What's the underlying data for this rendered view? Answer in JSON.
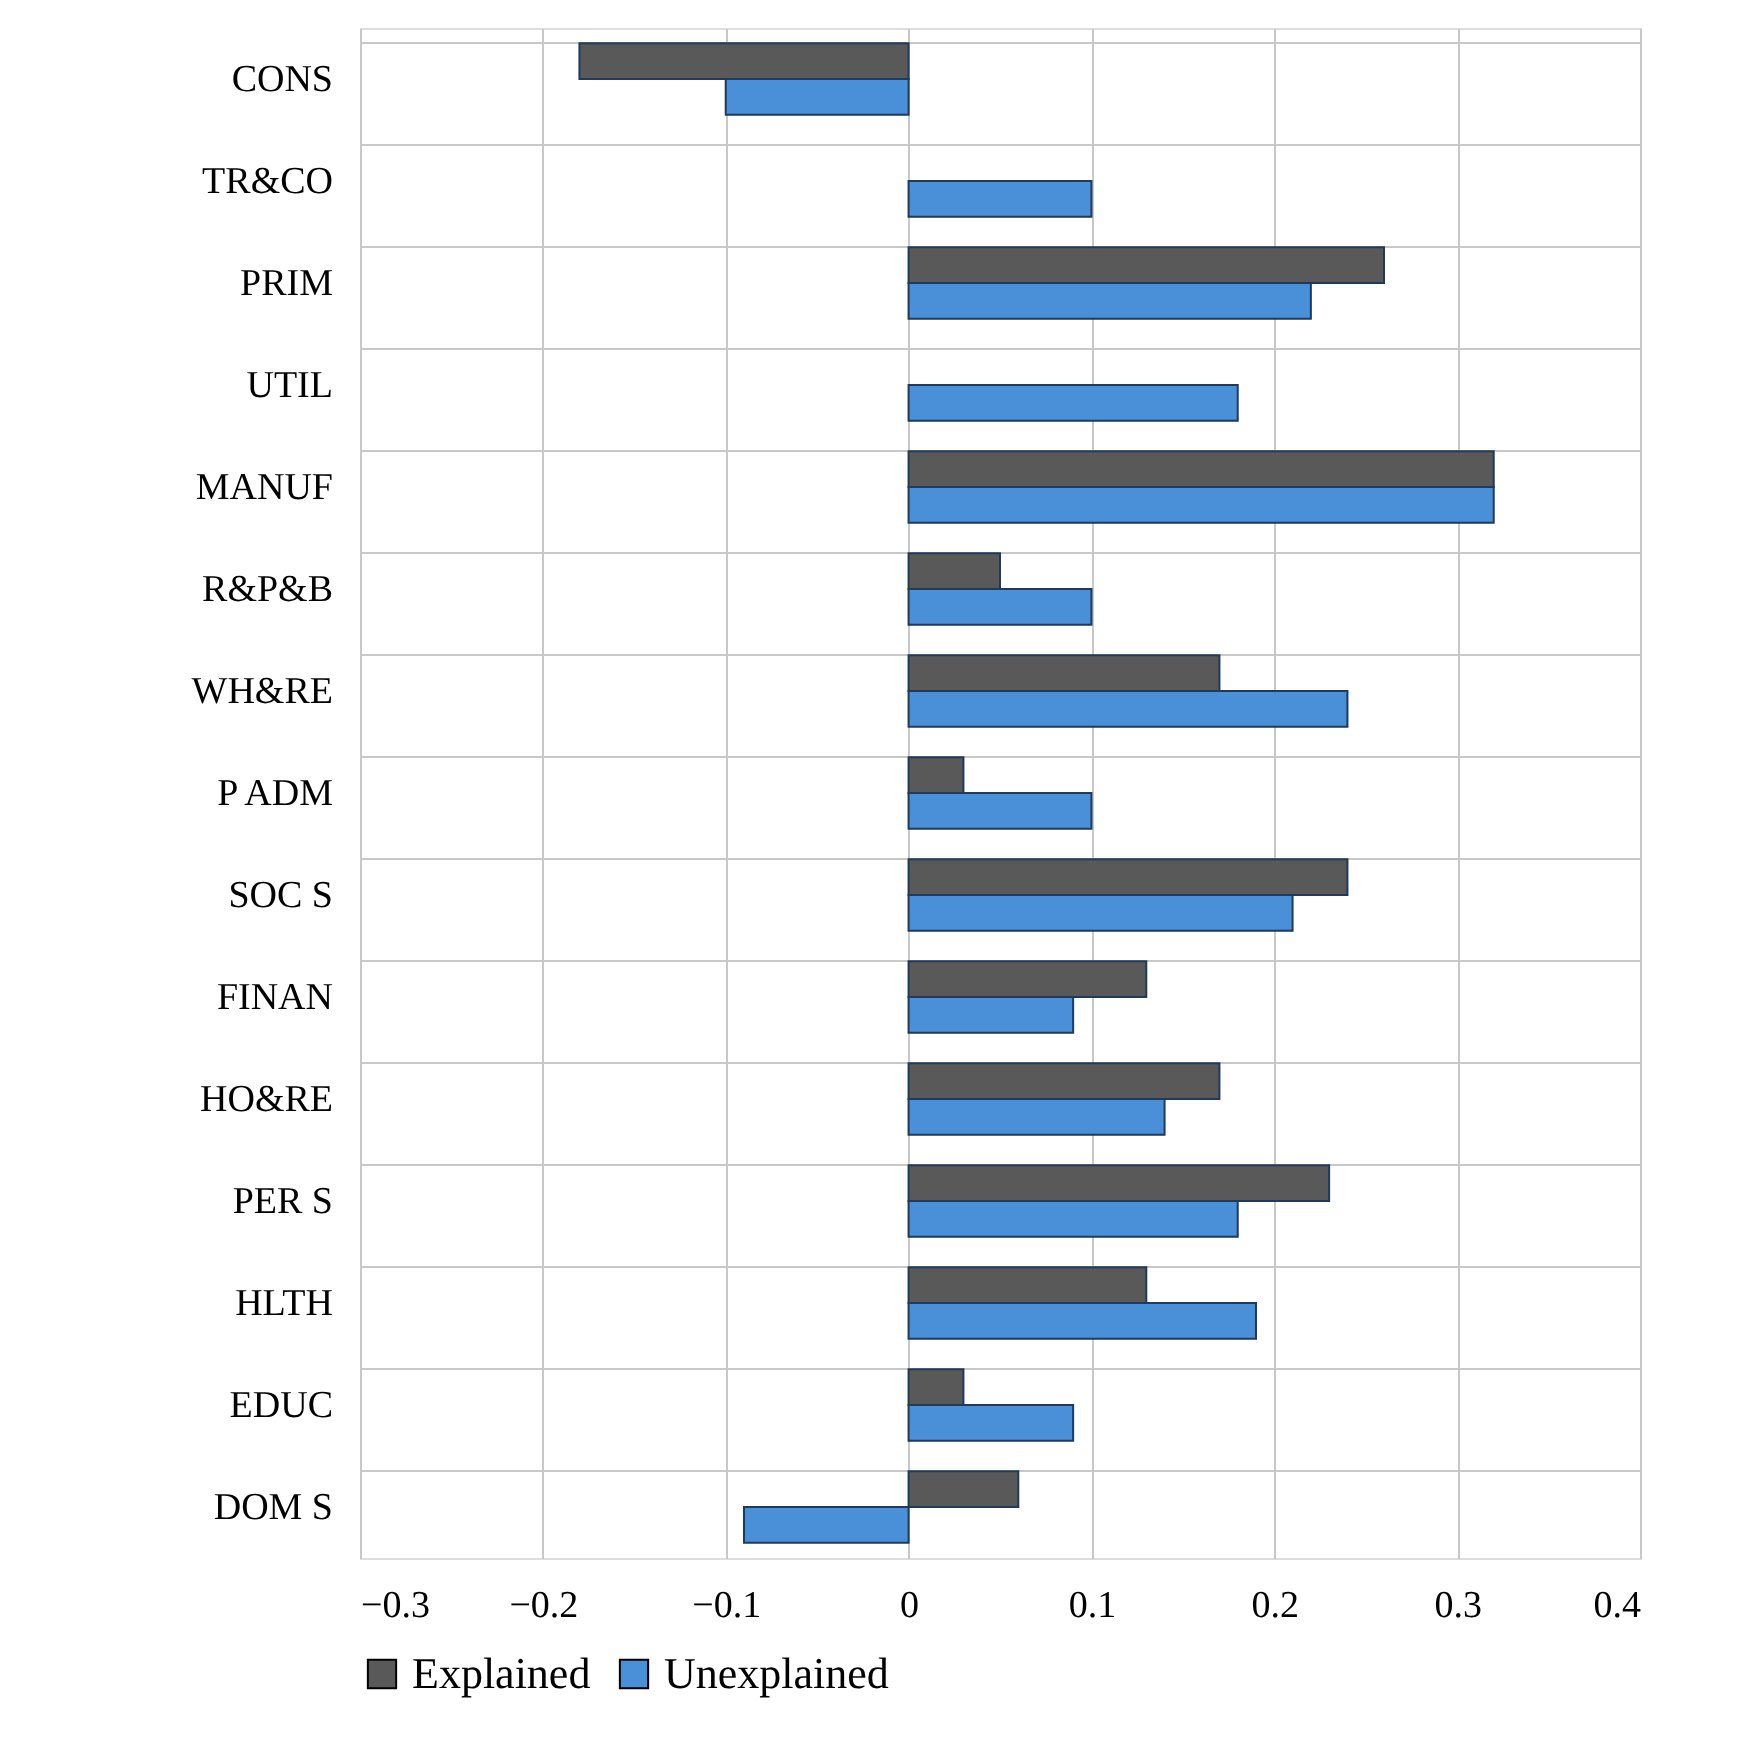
{
  "chart_data": {
    "type": "bar",
    "orientation": "horizontal",
    "categories": [
      "CONS",
      "TR&CO",
      "PRIM",
      "UTIL",
      "MANUF",
      "R&P&B",
      "WH&RE",
      "P ADM",
      "SOC S",
      "FINAN",
      "HO&RE",
      "PER S",
      "HLTH",
      "EDUC",
      "DOM S"
    ],
    "series": [
      {
        "name": "Explained",
        "color": "#595959",
        "values": [
          -0.18,
          null,
          0.26,
          null,
          0.32,
          0.05,
          0.17,
          0.03,
          0.24,
          0.13,
          0.17,
          0.23,
          0.13,
          0.03,
          0.06
        ]
      },
      {
        "name": "Unexplained",
        "color": "#4a90d9",
        "values": [
          -0.1,
          0.1,
          0.22,
          0.18,
          0.32,
          0.1,
          0.24,
          0.1,
          0.21,
          0.09,
          0.14,
          0.18,
          0.19,
          0.09,
          -0.09
        ]
      }
    ],
    "xlim": [
      -0.3,
      0.4
    ],
    "xticks": [
      -0.3,
      -0.2,
      -0.1,
      0,
      0.1,
      0.2,
      0.3,
      0.4
    ],
    "grid": true,
    "legend": "bottom"
  }
}
